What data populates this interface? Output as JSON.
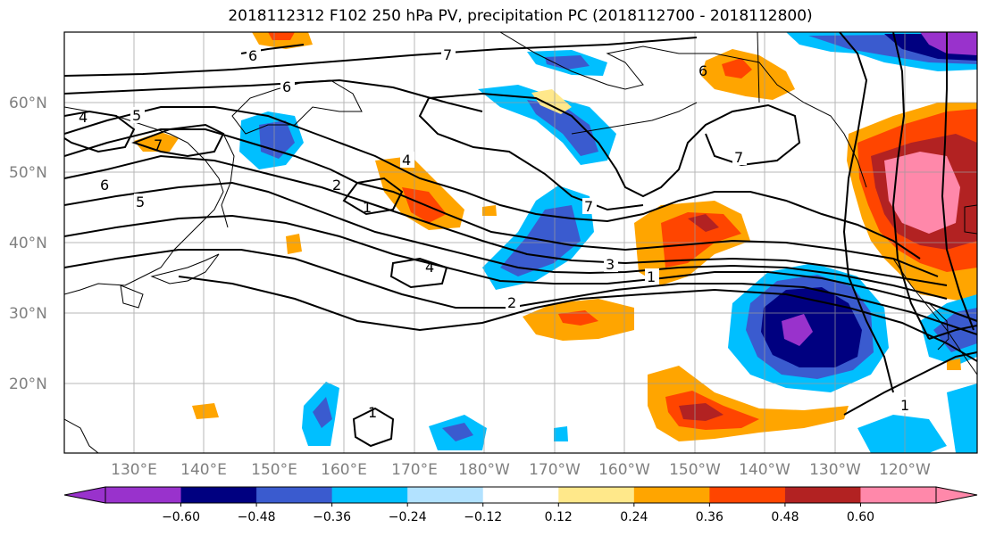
{
  "title": "2018112312 F102 250 hPa PV, precipitation PC (2018112700 - 2018112800)",
  "lat_labels": [
    "60°N",
    "50°N",
    "40°N",
    "30°N",
    "20°N"
  ],
  "lon_labels": [
    "130°E",
    "140°E",
    "150°E",
    "160°E",
    "170°E",
    "180°W",
    "170°W",
    "160°W",
    "150°W",
    "140°W",
    "130°W",
    "120°W"
  ],
  "colorbar": {
    "ticks": [
      "−0.60",
      "−0.48",
      "−0.36",
      "−0.24",
      "−0.12",
      "0.12",
      "0.24",
      "0.36",
      "0.48",
      "0.60"
    ],
    "colors": [
      "#9932CC",
      "#000080",
      "#3A5BCF",
      "#00BFFF",
      "#B2E2FF",
      "#FFFFFF",
      "#FFE88A",
      "#FFA500",
      "#FF4500",
      "#B22222",
      "#FF88AA"
    ]
  },
  "contour_labels": [
    "6",
    "7",
    "6",
    "4",
    "5",
    "7",
    "6",
    "5",
    "2",
    "4",
    "1",
    "4",
    "7",
    "3",
    "1",
    "2",
    "7",
    "6",
    "1",
    "1"
  ]
}
